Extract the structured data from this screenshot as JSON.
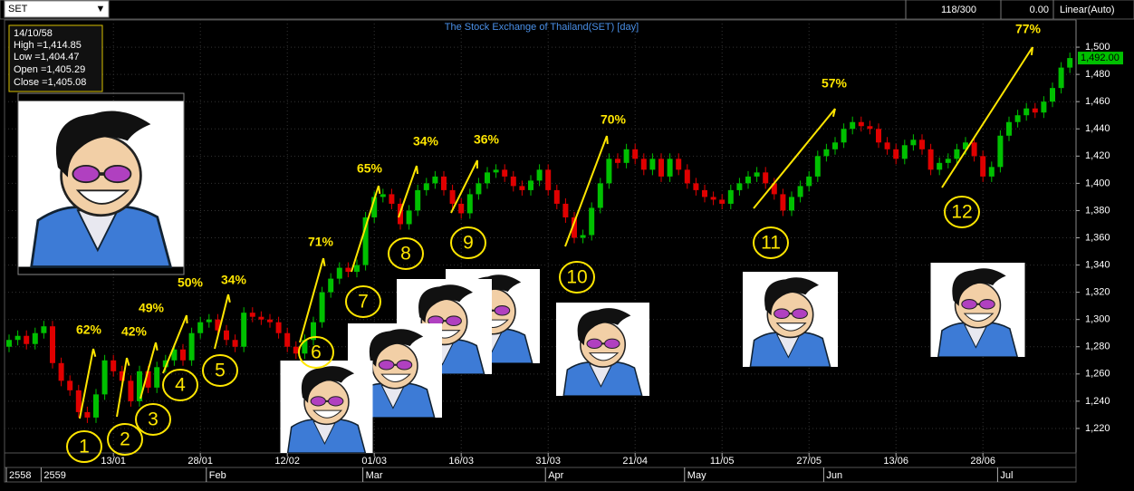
{
  "toolbar": {
    "symbol": "SET",
    "counter": "118/300",
    "change": "0.00",
    "scale_mode": "Linear(Auto)"
  },
  "info": {
    "date": "14/10/58",
    "lines": [
      "High =1,414.85",
      "Low =1,404.47",
      "Open =1,405.29",
      "Close =1,405.08"
    ]
  },
  "chart_data": {
    "type": "candlestick",
    "title": "The Stock Exchange of Thailand(SET) [day]",
    "up_color": "#00c000",
    "down_color": "#e00000",
    "categories": [
      null,
      null,
      null,
      null,
      null,
      null,
      null,
      null,
      null,
      null,
      null,
      null,
      "13/01",
      null,
      null,
      null,
      null,
      null,
      null,
      null,
      null,
      null,
      "28/01",
      null,
      null,
      null,
      null,
      null,
      null,
      null,
      null,
      null,
      "12/02",
      null,
      null,
      null,
      null,
      null,
      null,
      null,
      null,
      null,
      "01/03",
      null,
      null,
      null,
      null,
      null,
      null,
      null,
      null,
      null,
      "16/03",
      null,
      null,
      null,
      null,
      null,
      null,
      null,
      null,
      null,
      "31/03",
      null,
      null,
      null,
      null,
      null,
      null,
      null,
      null,
      null,
      "21/04",
      null,
      null,
      null,
      null,
      null,
      null,
      null,
      null,
      null,
      "11/05",
      null,
      null,
      null,
      null,
      null,
      null,
      null,
      null,
      null,
      "27/05",
      null,
      null,
      null,
      null,
      null,
      null,
      null,
      null,
      null,
      "13/06",
      null,
      null,
      null,
      null,
      null,
      null,
      null,
      null,
      null,
      "28/06",
      null,
      null,
      null,
      null,
      null,
      null,
      null,
      null,
      null,
      null
    ],
    "periods": [
      "2558",
      null,
      null,
      null,
      "2559",
      null,
      null,
      null,
      null,
      null,
      null,
      null,
      null,
      null,
      null,
      null,
      null,
      null,
      null,
      null,
      null,
      null,
      null,
      "Feb",
      null,
      null,
      null,
      null,
      null,
      null,
      null,
      null,
      null,
      null,
      null,
      null,
      null,
      null,
      null,
      null,
      null,
      "Mar",
      null,
      null,
      null,
      null,
      null,
      null,
      null,
      null,
      null,
      null,
      null,
      null,
      null,
      null,
      null,
      null,
      null,
      null,
      null,
      null,
      "Apr",
      null,
      null,
      null,
      null,
      null,
      null,
      null,
      null,
      null,
      null,
      null,
      null,
      null,
      null,
      null,
      "May",
      null,
      null,
      null,
      null,
      null,
      null,
      null,
      null,
      null,
      null,
      null,
      null,
      null,
      null,
      null,
      "Jun",
      null,
      null,
      null,
      null,
      null,
      null,
      null,
      null,
      null,
      null,
      null,
      null,
      null,
      null,
      null,
      null,
      null,
      null,
      null,
      "Jul",
      null,
      null,
      null,
      null,
      null,
      null,
      null,
      null
    ],
    "open": [
      1280,
      1285,
      1288,
      1282,
      1290,
      1295,
      1268,
      1255,
      1248,
      1232,
      1228,
      1245,
      1270,
      1262,
      1255,
      1240,
      1262,
      1250,
      1265,
      1270,
      1278,
      1270,
      1290,
      1298,
      1300,
      1292,
      1285,
      1280,
      1305,
      1302,
      1300,
      1298,
      1290,
      1280,
      1275,
      1285,
      1298,
      1320,
      1330,
      1338,
      1335,
      1340,
      1375,
      1390,
      1392,
      1385,
      1370,
      1380,
      1395,
      1400,
      1405,
      1395,
      1385,
      1378,
      1392,
      1400,
      1408,
      1410,
      1405,
      1398,
      1395,
      1402,
      1410,
      1395,
      1385,
      1375,
      1360,
      1362,
      1382,
      1400,
      1418,
      1415,
      1425,
      1418,
      1410,
      1418,
      1405,
      1418,
      1410,
      1400,
      1395,
      1390,
      1388,
      1385,
      1395,
      1400,
      1405,
      1408,
      1400,
      1392,
      1380,
      1390,
      1398,
      1405,
      1420,
      1425,
      1430,
      1440,
      1445,
      1442,
      1440,
      1430,
      1425,
      1418,
      1428,
      1432,
      1425,
      1410,
      1415,
      1418,
      1425,
      1430,
      1420,
      1405,
      1412,
      1435,
      1445,
      1450,
      1455,
      1452,
      1460,
      1470,
      1485
    ],
    "high": [
      1289,
      1292,
      1292,
      1294,
      1299,
      1299,
      1272,
      1259,
      1252,
      1236,
      1249,
      1274,
      1274,
      1266,
      1259,
      1266,
      1266,
      1269,
      1274,
      1282,
      1282,
      1294,
      1302,
      1304,
      1304,
      1296,
      1289,
      1309,
      1309,
      1306,
      1304,
      1302,
      1294,
      1284,
      1289,
      1302,
      1324,
      1334,
      1342,
      1342,
      1344,
      1379,
      1394,
      1396,
      1396,
      1389,
      1384,
      1399,
      1404,
      1409,
      1409,
      1399,
      1389,
      1396,
      1404,
      1412,
      1414,
      1414,
      1409,
      1402,
      1406,
      1414,
      1414,
      1399,
      1389,
      1379,
      1366,
      1386,
      1404,
      1422,
      1422,
      1429,
      1429,
      1422,
      1422,
      1422,
      1422,
      1422,
      1414,
      1404,
      1399,
      1394,
      1392,
      1399,
      1404,
      1409,
      1412,
      1412,
      1404,
      1396,
      1394,
      1402,
      1409,
      1424,
      1429,
      1434,
      1444,
      1449,
      1449,
      1446,
      1444,
      1434,
      1429,
      1432,
      1436,
      1436,
      1429,
      1419,
      1422,
      1429,
      1434,
      1434,
      1424,
      1416,
      1439,
      1449,
      1454,
      1459,
      1459,
      1464,
      1474,
      1489,
      1496
    ],
    "low": [
      1276,
      1281,
      1278,
      1278,
      1286,
      1264,
      1251,
      1244,
      1228,
      1224,
      1224,
      1241,
      1258,
      1251,
      1236,
      1236,
      1246,
      1246,
      1261,
      1266,
      1266,
      1266,
      1286,
      1294,
      1288,
      1281,
      1276,
      1276,
      1298,
      1296,
      1294,
      1286,
      1276,
      1271,
      1271,
      1281,
      1294,
      1316,
      1326,
      1331,
      1331,
      1336,
      1371,
      1386,
      1381,
      1366,
      1366,
      1376,
      1391,
      1396,
      1391,
      1381,
      1374,
      1374,
      1388,
      1396,
      1404,
      1401,
      1394,
      1391,
      1391,
      1398,
      1391,
      1381,
      1371,
      1356,
      1356,
      1358,
      1378,
      1396,
      1411,
      1411,
      1414,
      1406,
      1406,
      1401,
      1401,
      1406,
      1396,
      1391,
      1386,
      1384,
      1381,
      1381,
      1391,
      1396,
      1401,
      1396,
      1388,
      1376,
      1376,
      1386,
      1394,
      1401,
      1416,
      1421,
      1426,
      1436,
      1438,
      1436,
      1426,
      1421,
      1414,
      1414,
      1424,
      1421,
      1406,
      1406,
      1411,
      1414,
      1421,
      1416,
      1401,
      1401,
      1408,
      1431,
      1441,
      1446,
      1448,
      1448,
      1456,
      1466,
      1481
    ],
    "close": [
      1285,
      1288,
      1282,
      1290,
      1295,
      1268,
      1255,
      1248,
      1232,
      1228,
      1245,
      1270,
      1262,
      1255,
      1240,
      1262,
      1250,
      1265,
      1270,
      1278,
      1270,
      1290,
      1298,
      1300,
      1292,
      1285,
      1280,
      1305,
      1302,
      1300,
      1298,
      1290,
      1280,
      1275,
      1285,
      1298,
      1320,
      1330,
      1338,
      1335,
      1340,
      1375,
      1390,
      1392,
      1385,
      1370,
      1380,
      1395,
      1400,
      1405,
      1395,
      1385,
      1378,
      1392,
      1400,
      1408,
      1410,
      1405,
      1398,
      1395,
      1402,
      1410,
      1395,
      1385,
      1375,
      1360,
      1362,
      1382,
      1400,
      1418,
      1415,
      1425,
      1418,
      1410,
      1418,
      1405,
      1418,
      1410,
      1400,
      1395,
      1390,
      1388,
      1385,
      1395,
      1400,
      1405,
      1408,
      1400,
      1392,
      1380,
      1390,
      1398,
      1405,
      1420,
      1425,
      1430,
      1440,
      1445,
      1442,
      1440,
      1430,
      1425,
      1418,
      1428,
      1432,
      1425,
      1410,
      1415,
      1418,
      1425,
      1430,
      1420,
      1405,
      1412,
      1435,
      1445,
      1450,
      1455,
      1452,
      1460,
      1470,
      1485,
      1492
    ],
    "last_price": {
      "value": 1492,
      "label": "1,492.00"
    },
    "ylim": [
      1202,
      1520
    ],
    "yticks": [
      {
        "value": 1220,
        "label": "1,220"
      },
      {
        "value": 1240,
        "label": "1,240"
      },
      {
        "value": 1260,
        "label": "1,260"
      },
      {
        "value": 1280,
        "label": "1,280"
      },
      {
        "value": 1300,
        "label": "1,300"
      },
      {
        "value": 1320,
        "label": "1,320"
      },
      {
        "value": 1340,
        "label": "1,340"
      },
      {
        "value": 1360,
        "label": "1,360"
      },
      {
        "value": 1380,
        "label": "1,380"
      },
      {
        "value": 1400,
        "label": "1,400"
      },
      {
        "value": 1420,
        "label": "1,420"
      },
      {
        "value": 1440,
        "label": "1,440"
      },
      {
        "value": 1460,
        "label": "1,460"
      },
      {
        "value": 1480,
        "label": "1,480"
      },
      {
        "value": 1500,
        "label": "1,500"
      }
    ],
    "grid": true,
    "annotations": {
      "percents": [
        "62%",
        "42%",
        "49%",
        "50%",
        "34%",
        "71%",
        "65%",
        "34%",
        "36%",
        "70%",
        "57%",
        "77%"
      ],
      "numbers": [
        1,
        2,
        3,
        4,
        5,
        6,
        7,
        8,
        9,
        10,
        11,
        12
      ]
    }
  }
}
